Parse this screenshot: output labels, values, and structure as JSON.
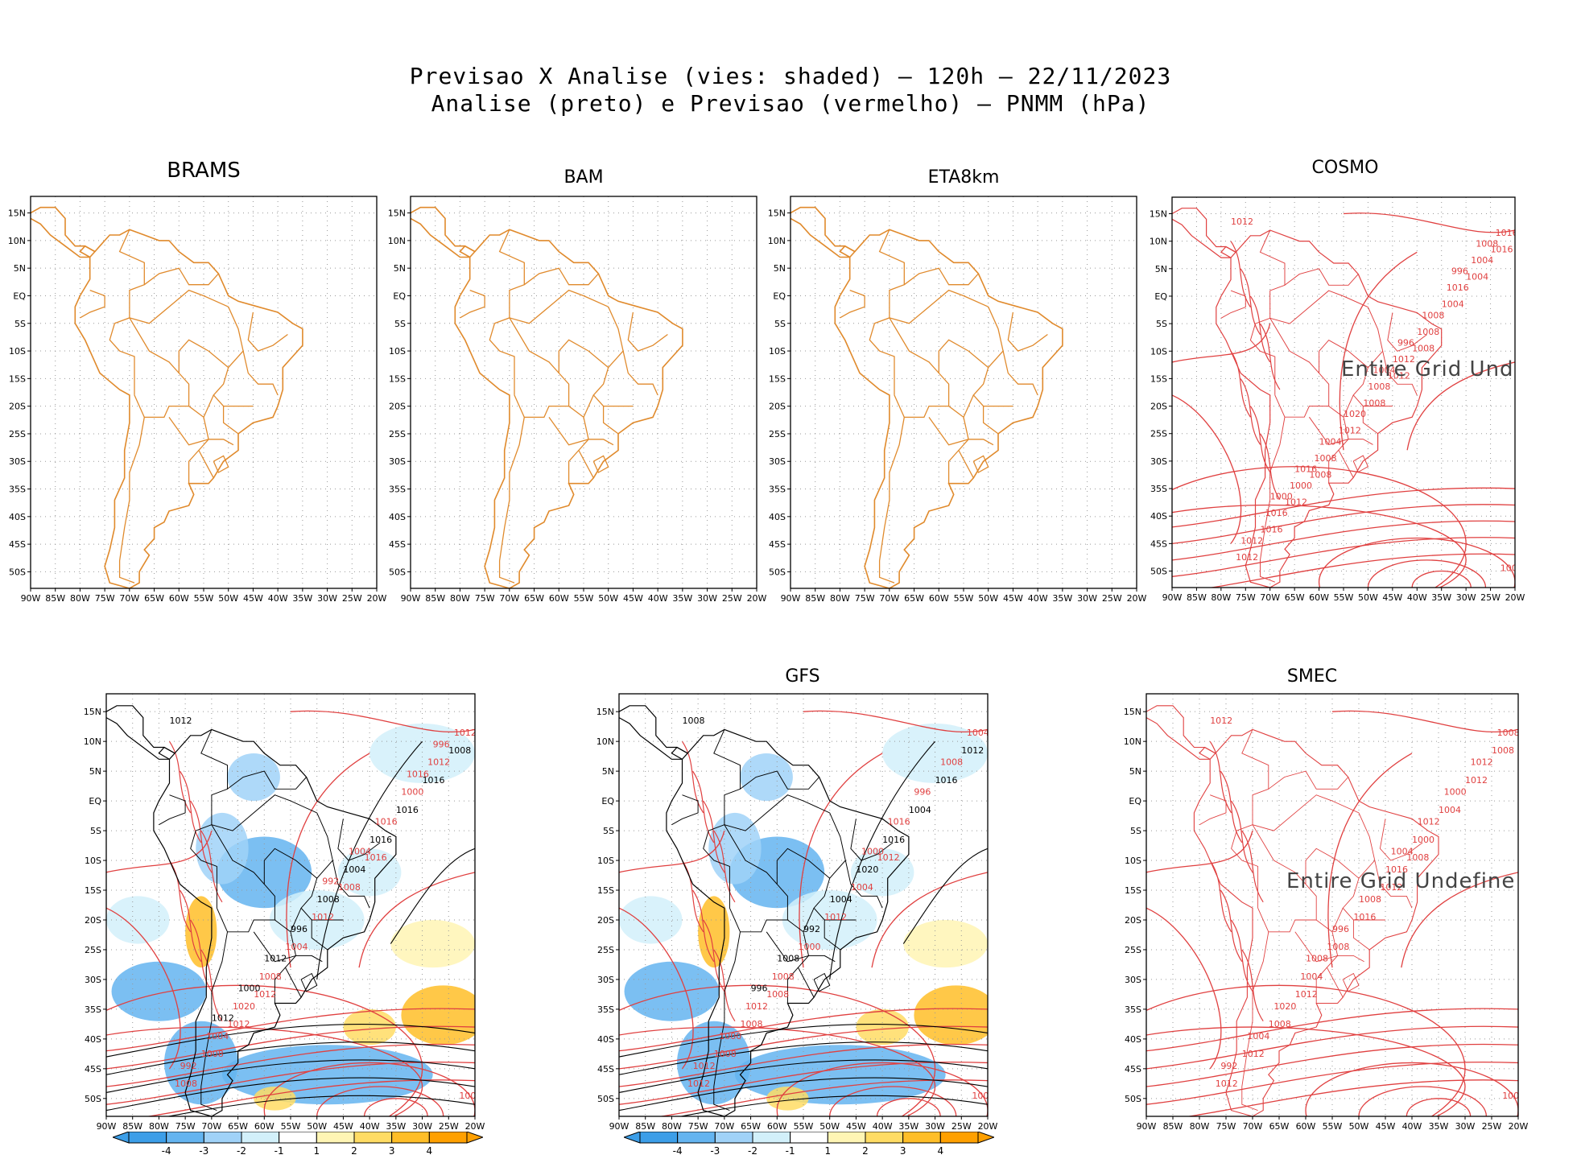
{
  "header": {
    "line1": "Previsao X Analise (vies: shaded) — 120h — 22/11/2023",
    "line2": "Analise (preto) e Previsao (vermelho) — PNMM (hPa)"
  },
  "axes": {
    "lat_labels": [
      "15N",
      "10N",
      "5N",
      "EQ",
      "5S",
      "10S",
      "15S",
      "20S",
      "25S",
      "30S",
      "35S",
      "40S",
      "45S",
      "50S"
    ],
    "lon_labels": [
      "90W",
      "85W",
      "80W",
      "75W",
      "70W",
      "65W",
      "60W",
      "55W",
      "50W",
      "45W",
      "40W",
      "35W",
      "30W",
      "25W",
      "20W"
    ]
  },
  "panels": [
    {
      "id": "brams",
      "title": "BRAMS",
      "kind": "empty"
    },
    {
      "id": "bam",
      "title": "BAM",
      "kind": "empty"
    },
    {
      "id": "eta8km",
      "title": "ETA8km",
      "kind": "empty"
    },
    {
      "id": "cosmo",
      "title": "COSMO",
      "kind": "contours",
      "note": "Entire Grid Und",
      "labels": [
        "1012",
        "1008",
        "1008",
        "1016",
        "1012",
        "1012",
        "1004",
        "1008",
        "1016",
        "1004",
        "1012",
        "1012",
        "1008",
        "1008",
        "1016",
        "1012",
        "1000",
        "1004",
        "1008",
        "1016",
        "1016",
        "1020",
        "1012",
        "1008",
        "1004",
        "1000",
        "996",
        "1016",
        "1008",
        "1004",
        "1000",
        "996"
      ]
    },
    {
      "id": "ecmwf",
      "title": "",
      "kind": "bias",
      "labels": [
        "1012",
        "1016",
        "1012",
        "1008",
        "1008",
        "1012",
        "1016",
        "1012",
        "1008",
        "1016",
        "1004",
        "1008",
        "1016",
        "1008",
        "1012",
        "1004",
        "1020",
        "1012",
        "1008",
        "1004",
        "1000",
        "996",
        "992",
        "1016",
        "1012",
        "1008",
        "1004",
        "1000",
        "996",
        "992",
        "1012",
        "1016"
      ]
    },
    {
      "id": "gfs",
      "title": "GFS",
      "kind": "bias",
      "labels": [
        "1008",
        "1012",
        "1008",
        "1012",
        "1004",
        "1008",
        "1016",
        "1012",
        "1008",
        "1004",
        "1000",
        "1012",
        "1016",
        "1008",
        "1004",
        "1020",
        "1012",
        "1008",
        "1004",
        "1000",
        "996",
        "992",
        "1012",
        "1016",
        "1008",
        "1004",
        "1000",
        "996"
      ]
    },
    {
      "id": "smec",
      "title": "SMEC",
      "kind": "contours",
      "note": "Entire Grid Undefine",
      "labels": [
        "1012",
        "1008",
        "1012",
        "1008",
        "1012",
        "1008",
        "1012",
        "1016",
        "1012",
        "1004",
        "1008",
        "1012",
        "1000",
        "1004",
        "1008",
        "1016",
        "1020",
        "1012",
        "1008",
        "1004",
        "1000",
        "996",
        "992",
        "1012",
        "1008",
        "1000",
        "1004"
      ]
    }
  ],
  "colorbar": {
    "ticks": [
      "-4",
      "-3",
      "-2",
      "-1",
      "1",
      "2",
      "3",
      "4"
    ],
    "colors": [
      "#3c9ee8",
      "#64b4f0",
      "#a0d2f8",
      "#d2f0fa",
      "#ffffff",
      "#fff5b4",
      "#ffdc64",
      "#ffbe28",
      "#ffa000"
    ]
  },
  "colors": {
    "analysis": "#000000",
    "forecast": "#e04040",
    "coast": "#e08a2c",
    "bias_neg": "#64b4f0",
    "bias_pos": "#ffbe28"
  }
}
